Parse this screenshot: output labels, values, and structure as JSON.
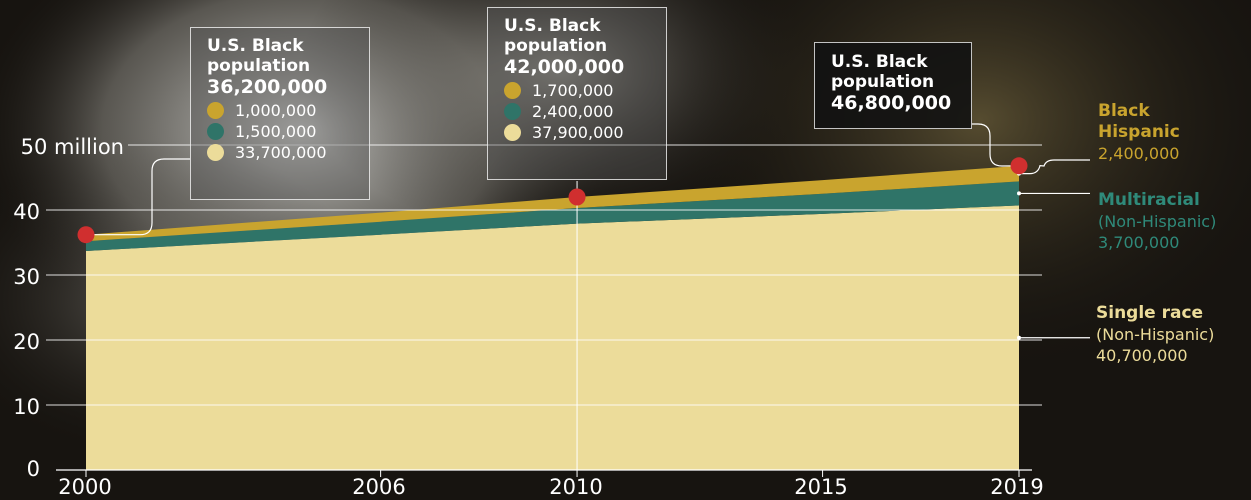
{
  "colors": {
    "single_race": "#ecdc9a",
    "multiracial": "#2f7468",
    "black_hispanic": "#c9a42e",
    "marker": "#d02f2f",
    "gridline": "#ffffff"
  },
  "chart_data": {
    "type": "area",
    "stacked": true,
    "x": [
      2000,
      2006,
      2010,
      2015,
      2019
    ],
    "x_tick_labels": [
      "2000",
      "2006",
      "2010",
      "2015",
      "2019"
    ],
    "ylim": [
      0,
      50
    ],
    "y_unit": "million",
    "y_ticks": [
      {
        "value": 0,
        "label": "0"
      },
      {
        "value": 10,
        "label": "10"
      },
      {
        "value": 20,
        "label": "20"
      },
      {
        "value": 30,
        "label": "30"
      },
      {
        "value": 40,
        "label": "40"
      },
      {
        "value": 50,
        "label": "50 million"
      }
    ],
    "grid": true,
    "series": [
      {
        "name": "Single race",
        "name_sub": "(Non-Hispanic)",
        "end_label": "40,700,000",
        "color": "single_race",
        "values": [
          33.7,
          36.2,
          37.9,
          39.4,
          40.7
        ]
      },
      {
        "name": "Multiracial",
        "name_sub": "(Non-Hispanic)",
        "end_label": "3,700,000",
        "color": "multiracial",
        "values": [
          1.5,
          2.0,
          2.4,
          3.1,
          3.7
        ]
      },
      {
        "name": "Black Hispanic",
        "name_sub": "",
        "end_label": "2,400,000",
        "color": "black_hispanic",
        "values": [
          1.0,
          1.4,
          1.7,
          2.1,
          2.4
        ]
      }
    ],
    "callouts": [
      {
        "year": 2000,
        "title": "U.S. Black population",
        "total": "36,200,000",
        "total_value": 36.2,
        "items": [
          "1,000,000",
          "1,500,000",
          "33,700,000"
        ]
      },
      {
        "year": 2010,
        "title": "U.S. Black population",
        "total": "42,000,000",
        "total_value": 42.0,
        "items": [
          "1,700,000",
          "2,400,000",
          "37,900,000"
        ]
      },
      {
        "year": 2019,
        "title": "U.S. Black population",
        "total": "46,800,000",
        "total_value": 46.8,
        "items": []
      }
    ]
  },
  "side_labels": {
    "hispanic": {
      "name_1": "Black",
      "name_2": "Hispanic",
      "value": "2,400,000"
    },
    "multiracial": {
      "name": "Multiracial",
      "sub": "(Non-Hispanic)",
      "value": "3,700,000"
    },
    "single": {
      "name": "Single race",
      "sub": "(Non-Hispanic)",
      "value": "40,700,000"
    }
  },
  "callout_text": {
    "box1": {
      "line1": "U.S. Black",
      "line2": "population",
      "total": "36,200,000",
      "v1": "1,000,000",
      "v2": "1,500,000",
      "v3": "33,700,000"
    },
    "box2": {
      "line1": "U.S. Black",
      "line2": "population",
      "total": "42,000,000",
      "v1": "1,700,000",
      "v2": "2,400,000",
      "v3": "37,900,000"
    },
    "box3": {
      "line1": "U.S. Black",
      "line2": "population",
      "total": "46,800,000"
    }
  }
}
